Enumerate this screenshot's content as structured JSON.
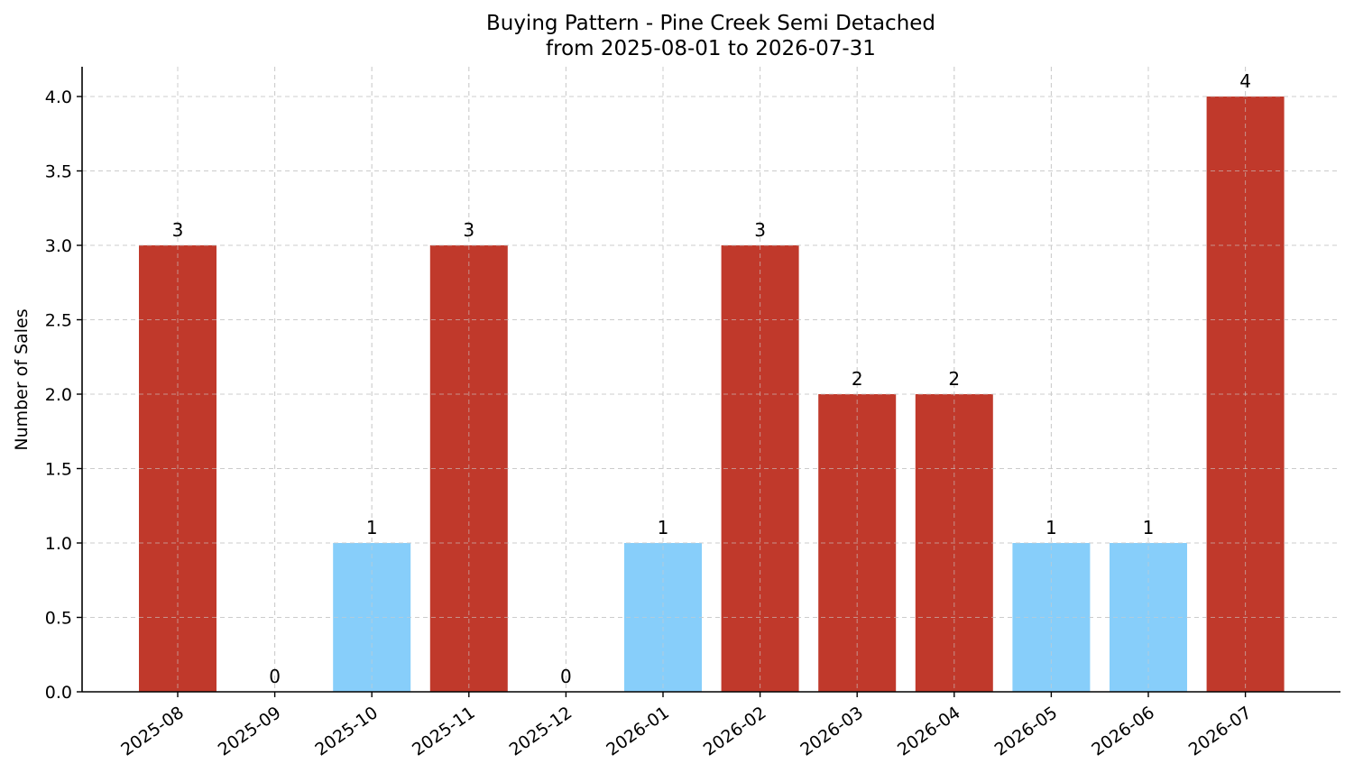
{
  "chart_data": {
    "type": "bar",
    "title": "Buying Pattern - Pine Creek Semi Detached",
    "subtitle": "from 2025-08-01 to 2026-07-31",
    "xlabel": "",
    "ylabel": "Number of Sales",
    "categories": [
      "2025-08",
      "2025-09",
      "2025-10",
      "2025-11",
      "2025-12",
      "2026-01",
      "2026-02",
      "2026-03",
      "2026-04",
      "2026-05",
      "2026-06",
      "2026-07"
    ],
    "values": [
      3,
      0,
      1,
      3,
      0,
      1,
      3,
      2,
      2,
      1,
      1,
      4
    ],
    "data_labels": [
      "3",
      "0",
      "1",
      "3",
      "0",
      "1",
      "3",
      "2",
      "2",
      "1",
      "1",
      "4"
    ],
    "ylim": [
      0,
      4.2
    ],
    "yticks": [
      0,
      0.5,
      1,
      1.5,
      2,
      2.5,
      3,
      3.5,
      4
    ],
    "ytick_labels": [
      "0.0",
      "0.5",
      "1.0",
      "1.5",
      "2.0",
      "2.5",
      "3.0",
      "3.5",
      "4.0"
    ],
    "grid": true,
    "colors": {
      "high": "#c0392b",
      "low": "#87cefa"
    },
    "high_threshold": 2
  }
}
